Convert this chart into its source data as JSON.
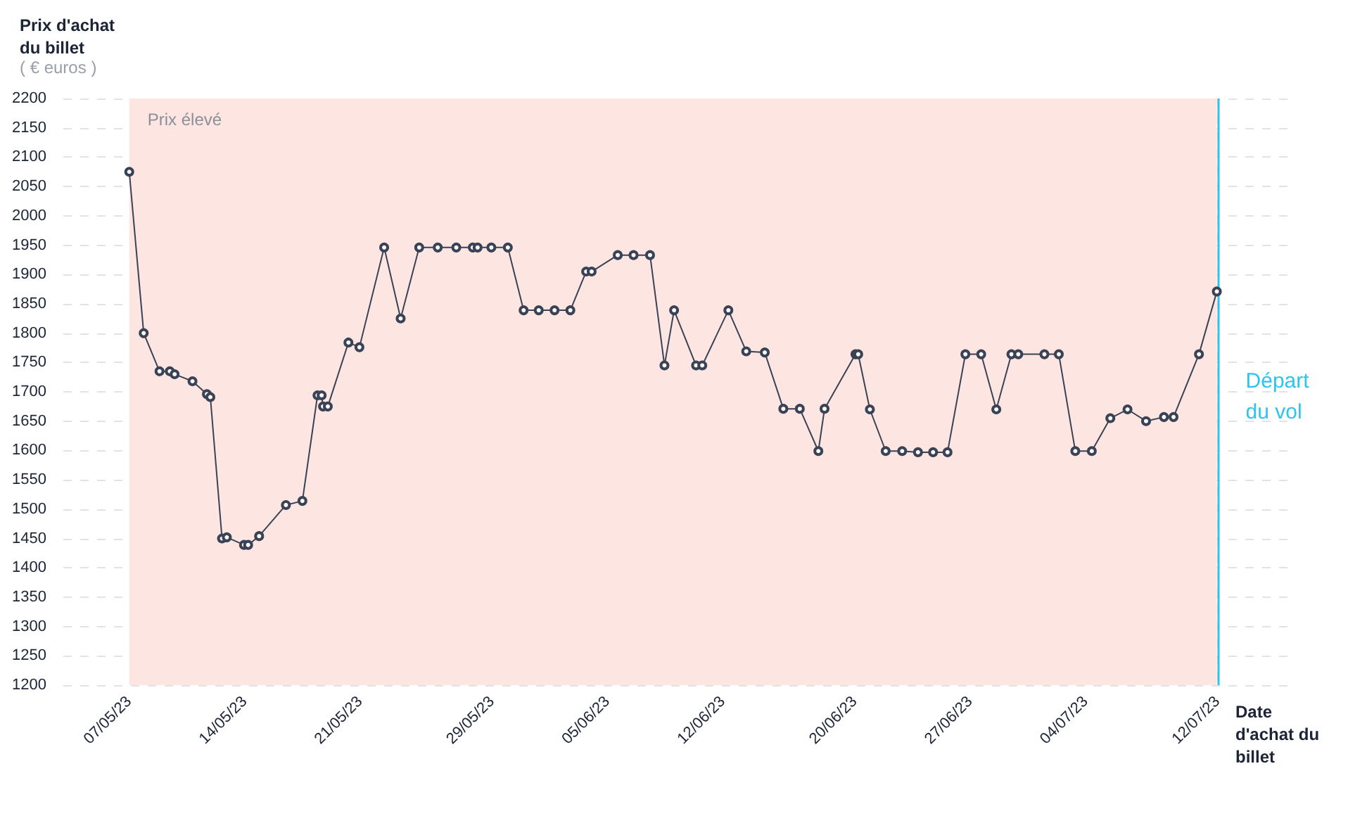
{
  "chart_data": {
    "type": "line",
    "ylabel": "Prix d'achat du billet",
    "xlabel": "Date d'achat du billet",
    "annotations": [
      "( € euros )"
    ],
    "x": [
      "--05-07T00:00",
      "--05-07T21:00",
      "--05-08T20:00",
      "--05-09T11:00",
      "--05-09T18:00",
      "--05-10T20:00",
      "--05-11T17:00",
      "--05-11T22:00",
      "--05-12T15:00",
      "--05-12T22:00",
      "--05-13T23:00",
      "--05-14T05:00",
      "--05-14T21:00",
      "--05-16T12:00",
      "--05-17T12:00",
      "--05-18T10:00",
      "--05-18T16:00",
      "--05-18T18:00",
      "--05-19T01:00",
      "--05-20T07:00",
      "--05-20T23:00",
      "--05-22T11:00",
      "--05-23T11:00",
      "--05-24T14:00",
      "--05-25T17:00",
      "--05-26T20:00",
      "--05-27T20:00",
      "--05-28T03:00",
      "--05-28T23:00",
      "--05-29T23:00",
      "--05-30T22:00",
      "--05-31T20:00",
      "--06-01T19:00",
      "--06-02T18:00",
      "--06-03T17:00",
      "--06-04T01:00",
      "--06-05T15:00",
      "--06-06T14:00",
      "--06-07T14:00",
      "--06-08T11:00",
      "--06-09T01:00",
      "--06-10T09:00",
      "--06-10T18:00",
      "--06-12T08:00",
      "--06-13T10:00",
      "--06-14T13:00",
      "--06-15T16:00",
      "--06-16T16:00",
      "--06-17T19:00",
      "--06-18T04:00",
      "--06-20T01:00",
      "--06-20T05:00",
      "--06-20T22:00",
      "--06-21T21:00",
      "--06-22T21:00",
      "--06-23T20:00",
      "--06-24T18:00",
      "--06-25T15:00",
      "--06-26T17:00",
      "--06-27T16:00",
      "--06-28T14:00",
      "--06-29T12:00",
      "--06-29T22:00",
      "--07-01T12:00",
      "--07-02T09:00",
      "--07-03T09:00",
      "--07-04T09:00",
      "--07-05T12:00",
      "--07-06T13:00",
      "--07-07T16:00",
      "--07-08T18:00",
      "--07-09T08:00",
      "--07-10T21:00",
      "--07-11T23:00"
    ],
    "series": [
      {
        "color": "#3a4256",
        "values": [
          2075,
          1800,
          1735,
          1735,
          1730,
          1718,
          1696,
          1691,
          1450,
          1452,
          1439,
          1439,
          1454,
          1507,
          1514,
          1694,
          1694,
          1675,
          1675,
          1784,
          1776,
          1946,
          1825,
          1946,
          1946,
          1946,
          1946,
          1946,
          1946,
          1946,
          1839,
          1839,
          1839,
          1839,
          1905,
          1905,
          1933,
          1933,
          1933,
          1745,
          1839,
          1745,
          1745,
          1839,
          1769,
          1767,
          1671,
          1671,
          1599,
          1671,
          1764,
          1764,
          1670,
          1599,
          1599,
          1597,
          1597,
          1597,
          1764,
          1764,
          1670,
          1764,
          1764,
          1764,
          1764,
          1599,
          1599,
          1655,
          1670,
          1650,
          1657,
          1657,
          1764,
          1871
        ]
      }
    ],
    "xlim": [
      "--05-03",
      "--07-16T12:00"
    ],
    "xticks": [
      {
        "value": "--05-07",
        "label": "07/05/23"
      },
      {
        "value": "--05-14",
        "label": "14/05/23"
      },
      {
        "value": "--05-21",
        "label": "21/05/23"
      },
      {
        "value": "--05-29",
        "label": "29/05/23"
      },
      {
        "value": "--06-05",
        "label": "05/06/23"
      },
      {
        "value": "--06-12",
        "label": "12/06/23"
      },
      {
        "value": "--06-20",
        "label": "20/06/23"
      },
      {
        "value": "--06-27",
        "label": "27/06/23"
      },
      {
        "value": "--07-04",
        "label": "04/07/23"
      },
      {
        "value": "--07-12",
        "label": "12/07/23"
      }
    ],
    "ylim": [
      1200,
      2200
    ],
    "yticks": [
      1200,
      1250,
      1300,
      1350,
      1400,
      1450,
      1500,
      1550,
      1600,
      1650,
      1700,
      1750,
      1800,
      1850,
      1900,
      1950,
      2000,
      2050,
      2100,
      2150,
      2200
    ],
    "grid": true,
    "marker": "circle",
    "line_style": "solid",
    "ref_lines": [
      {
        "axis": "x",
        "value": "--07-12",
        "label": "Départ du vol",
        "color": "#2ec4f0"
      }
    ],
    "bands": [
      {
        "axis": "y",
        "from": 1200,
        "to": 2200,
        "label": "Prix élevé",
        "color": "#fde6e1"
      }
    ]
  }
}
